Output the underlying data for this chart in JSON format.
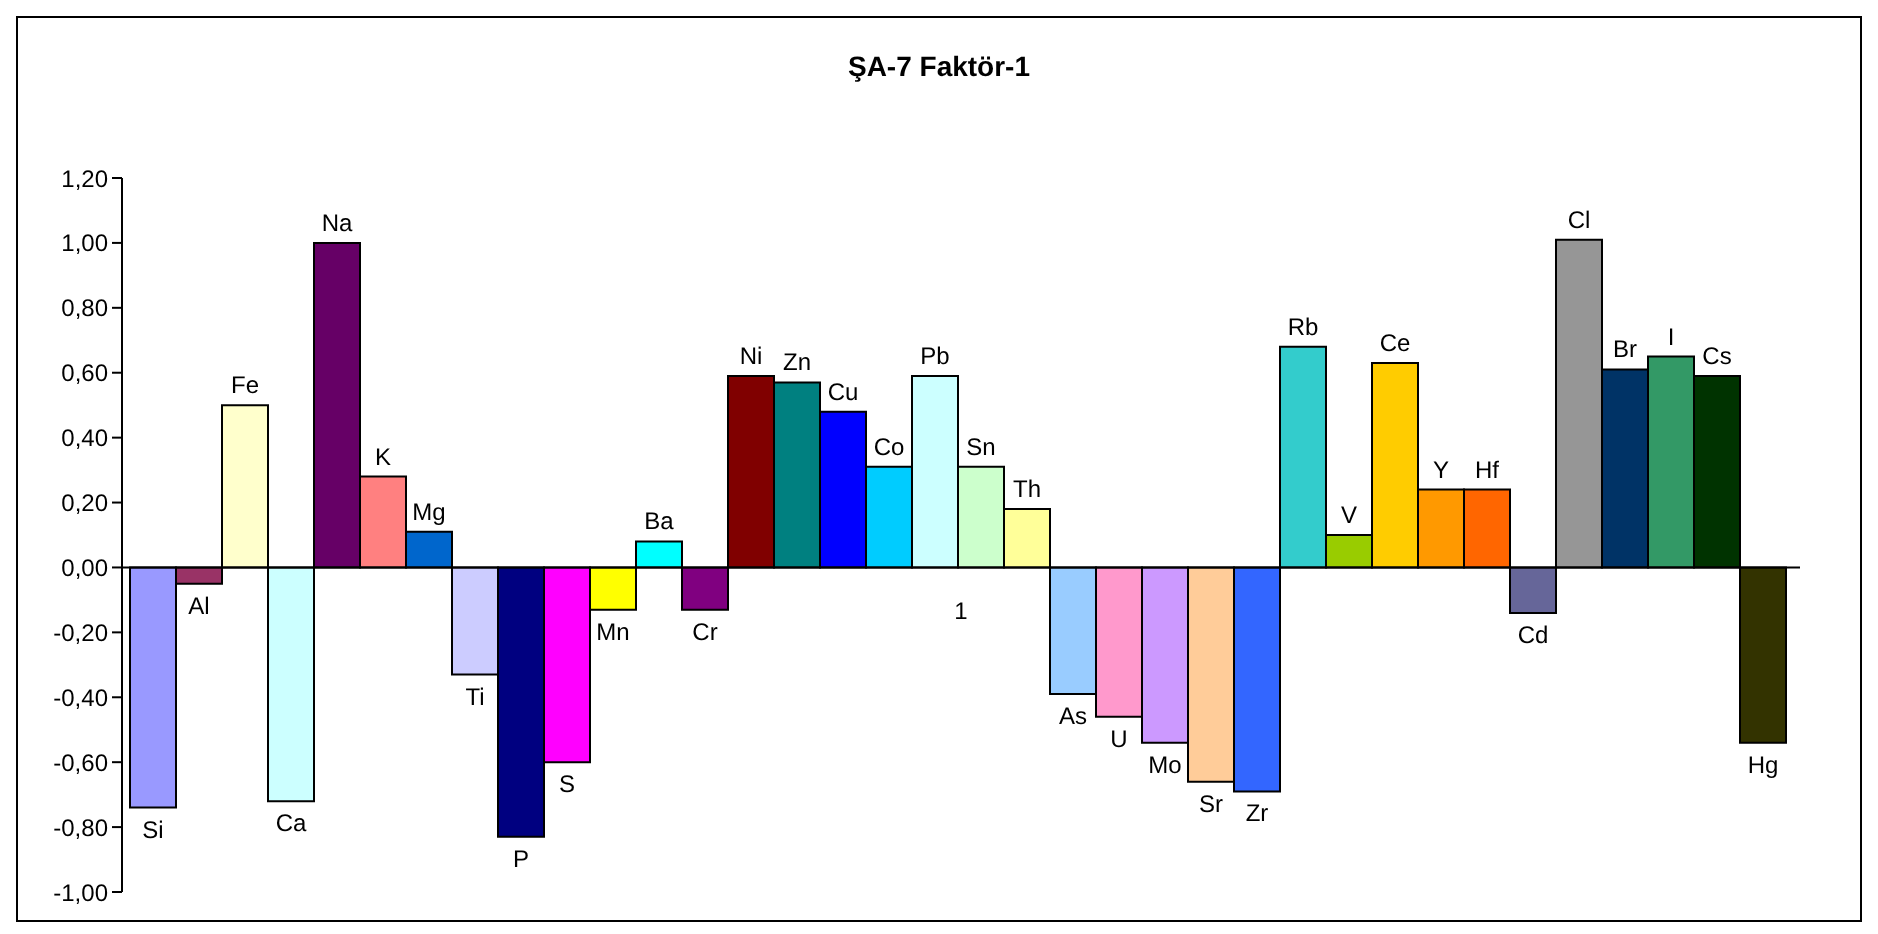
{
  "chart_data": {
    "type": "bar",
    "title": "ŞA-7 Faktör-1",
    "categories": [
      "1"
    ],
    "ylim": [
      -1,
      1.2
    ],
    "yticks": [
      {
        "value": -1,
        "label": "-1,00"
      },
      {
        "value": -0.8,
        "label": "-0,80"
      },
      {
        "value": -0.6,
        "label": "-0,60"
      },
      {
        "value": -0.4,
        "label": "-0,40"
      },
      {
        "value": -0.2,
        "label": "-0,20"
      },
      {
        "value": 0,
        "label": "0,00"
      },
      {
        "value": 0.2,
        "label": "0,20"
      },
      {
        "value": 0.4,
        "label": "0,40"
      },
      {
        "value": 0.6,
        "label": "0,60"
      },
      {
        "value": 0.8,
        "label": "0,80"
      },
      {
        "value": 1,
        "label": "1,00"
      },
      {
        "value": 1.2,
        "label": "1,20"
      }
    ],
    "legend": false,
    "series": [
      {
        "name": "Si",
        "color": "#9999ff",
        "values": [
          -0.74
        ]
      },
      {
        "name": "Al",
        "color": "#993366",
        "values": [
          -0.05
        ]
      },
      {
        "name": "Fe",
        "color": "#ffffcc",
        "values": [
          0.5
        ]
      },
      {
        "name": "Ca",
        "color": "#ccffff",
        "values": [
          -0.72
        ]
      },
      {
        "name": "Na",
        "color": "#660066",
        "values": [
          1.0
        ]
      },
      {
        "name": "K",
        "color": "#ff8080",
        "values": [
          0.28
        ]
      },
      {
        "name": "Mg",
        "color": "#0066cc",
        "values": [
          0.11
        ]
      },
      {
        "name": "Ti",
        "color": "#ccccff",
        "values": [
          -0.33
        ]
      },
      {
        "name": "P",
        "color": "#000080",
        "values": [
          -0.83
        ]
      },
      {
        "name": "S",
        "color": "#ff00ff",
        "values": [
          -0.6
        ]
      },
      {
        "name": "Mn",
        "color": "#ffff00",
        "values": [
          -0.13
        ]
      },
      {
        "name": "Ba",
        "color": "#00ffff",
        "values": [
          0.08
        ]
      },
      {
        "name": "Cr",
        "color": "#800080",
        "values": [
          -0.13
        ]
      },
      {
        "name": "Ni",
        "color": "#800000",
        "values": [
          0.59
        ]
      },
      {
        "name": "Zn",
        "color": "#008080",
        "values": [
          0.57
        ]
      },
      {
        "name": "Cu",
        "color": "#0000ff",
        "values": [
          0.48
        ]
      },
      {
        "name": "Co",
        "color": "#00ccff",
        "values": [
          0.31
        ]
      },
      {
        "name": "Pb",
        "color": "#ccffff",
        "values": [
          0.59
        ]
      },
      {
        "name": "Sn",
        "color": "#ccffcc",
        "values": [
          0.31
        ]
      },
      {
        "name": "Th",
        "color": "#ffff99",
        "values": [
          0.18
        ]
      },
      {
        "name": "As",
        "color": "#99ccff",
        "values": [
          -0.39
        ]
      },
      {
        "name": "U",
        "color": "#ff99cc",
        "values": [
          -0.46
        ]
      },
      {
        "name": "Mo",
        "color": "#cc99ff",
        "values": [
          -0.54
        ]
      },
      {
        "name": "Sr",
        "color": "#ffcc99",
        "values": [
          -0.66
        ]
      },
      {
        "name": "Zr",
        "color": "#3366ff",
        "values": [
          -0.69
        ]
      },
      {
        "name": "Rb",
        "color": "#33cccc",
        "values": [
          0.68
        ]
      },
      {
        "name": "V",
        "color": "#99cc00",
        "values": [
          0.1
        ]
      },
      {
        "name": "Ce",
        "color": "#ffcc00",
        "values": [
          0.63
        ]
      },
      {
        "name": "Y",
        "color": "#ff9900",
        "values": [
          0.24
        ]
      },
      {
        "name": "Hf",
        "color": "#ff6600",
        "values": [
          0.24
        ]
      },
      {
        "name": "Cd",
        "color": "#666699",
        "values": [
          -0.14
        ]
      },
      {
        "name": "Cl",
        "color": "#969696",
        "values": [
          1.01
        ]
      },
      {
        "name": "Br",
        "color": "#003366",
        "values": [
          0.61
        ]
      },
      {
        "name": "I",
        "color": "#339966",
        "values": [
          0.65
        ]
      },
      {
        "name": "Cs",
        "color": "#003300",
        "values": [
          0.59
        ]
      },
      {
        "name": "Hg",
        "color": "#333300",
        "values": [
          -0.54
        ]
      }
    ]
  }
}
